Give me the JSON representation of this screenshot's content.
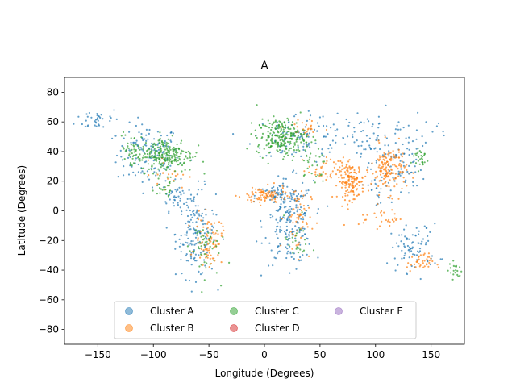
{
  "chart_data": {
    "type": "scatter",
    "title": "A",
    "xlabel": "Longitude (Degrees)",
    "ylabel": "Latitude (Degrees)",
    "xlim": [
      -180,
      180
    ],
    "ylim": [
      -90,
      90
    ],
    "xticks": [
      -150,
      -100,
      -50,
      0,
      50,
      100,
      150
    ],
    "yticks": [
      -80,
      -60,
      -40,
      -20,
      0,
      20,
      40,
      60,
      80
    ],
    "xtick_labels": [
      "−150",
      "−100",
      "−50",
      "0",
      "50",
      "100",
      "150"
    ],
    "ytick_labels": [
      "−80",
      "−60",
      "−40",
      "−20",
      "0",
      "20",
      "40",
      "60",
      "80"
    ],
    "grid": false,
    "legend": {
      "placement": "lower-center",
      "columns": 3,
      "entries": [
        "Cluster A",
        "Cluster B",
        "Cluster C",
        "Cluster D",
        "Cluster E"
      ]
    },
    "colors": {
      "Cluster A": "#1f77b4",
      "Cluster B": "#ff7f0e",
      "Cluster C": "#2ca02c",
      "Cluster D": "#d62728",
      "Cluster E": "#9467bd"
    },
    "series": [
      {
        "name": "Cluster A",
        "regions": [
          {
            "x": -105,
            "y": 38,
            "sx": 14,
            "sy": 10,
            "n": 140
          },
          {
            "x": -150,
            "y": 62,
            "sx": 10,
            "sy": 4,
            "n": 35
          },
          {
            "x": -80,
            "y": 10,
            "sx": 6,
            "sy": 5,
            "n": 40
          },
          {
            "x": -62,
            "y": -15,
            "sx": 9,
            "sy": 15,
            "n": 160
          },
          {
            "x": 22,
            "y": -8,
            "sx": 11,
            "sy": 14,
            "n": 200
          },
          {
            "x": 12,
            "y": 10,
            "sx": 10,
            "sy": 4,
            "n": 50
          },
          {
            "x": 30,
            "y": 50,
            "sx": 20,
            "sy": 8,
            "n": 80
          },
          {
            "x": 90,
            "y": 50,
            "sx": 30,
            "sy": 9,
            "n": 110
          },
          {
            "x": 120,
            "y": 28,
            "sx": 12,
            "sy": 10,
            "n": 60
          },
          {
            "x": 135,
            "y": -25,
            "sx": 11,
            "sy": 8,
            "n": 80
          },
          {
            "x": 100,
            "y": 15,
            "sx": 6,
            "sy": 6,
            "n": 25
          }
        ]
      },
      {
        "name": "Cluster B",
        "regions": [
          {
            "x": 78,
            "y": 20,
            "sx": 6,
            "sy": 6,
            "n": 150
          },
          {
            "x": 112,
            "y": 28,
            "sx": 8,
            "sy": 8,
            "n": 150
          },
          {
            "x": 0,
            "y": 10,
            "sx": 10,
            "sy": 3,
            "n": 90
          },
          {
            "x": -50,
            "y": -20,
            "sx": 6,
            "sy": 8,
            "n": 80
          },
          {
            "x": 30,
            "y": -5,
            "sx": 6,
            "sy": 12,
            "n": 60
          },
          {
            "x": 140,
            "y": -35,
            "sx": 6,
            "sy": 3,
            "n": 40
          },
          {
            "x": 55,
            "y": 28,
            "sx": 8,
            "sy": 4,
            "n": 35
          },
          {
            "x": 35,
            "y": 55,
            "sx": 10,
            "sy": 4,
            "n": 25
          },
          {
            "x": -85,
            "y": 25,
            "sx": 8,
            "sy": 5,
            "n": 20
          },
          {
            "x": 105,
            "y": -5,
            "sx": 10,
            "sy": 3,
            "n": 30
          }
        ]
      },
      {
        "name": "Cluster C",
        "regions": [
          {
            "x": -88,
            "y": 38,
            "sx": 12,
            "sy": 6,
            "n": 230
          },
          {
            "x": -120,
            "y": 40,
            "sx": 5,
            "sy": 6,
            "n": 40
          },
          {
            "x": 15,
            "y": 50,
            "sx": 11,
            "sy": 6,
            "n": 230
          },
          {
            "x": -55,
            "y": -25,
            "sx": 7,
            "sy": 10,
            "n": 50
          },
          {
            "x": 140,
            "y": 36,
            "sx": 4,
            "sy": 4,
            "n": 30
          },
          {
            "x": 172,
            "y": -40,
            "sx": 3,
            "sy": 3,
            "n": 20
          },
          {
            "x": -90,
            "y": 15,
            "sx": 6,
            "sy": 4,
            "n": 25
          },
          {
            "x": 40,
            "y": 30,
            "sx": 8,
            "sy": 6,
            "n": 30
          },
          {
            "x": 30,
            "y": -20,
            "sx": 6,
            "sy": 8,
            "n": 25
          }
        ]
      },
      {
        "name": "Cluster D",
        "regions": []
      },
      {
        "name": "Cluster E",
        "regions": []
      }
    ]
  }
}
